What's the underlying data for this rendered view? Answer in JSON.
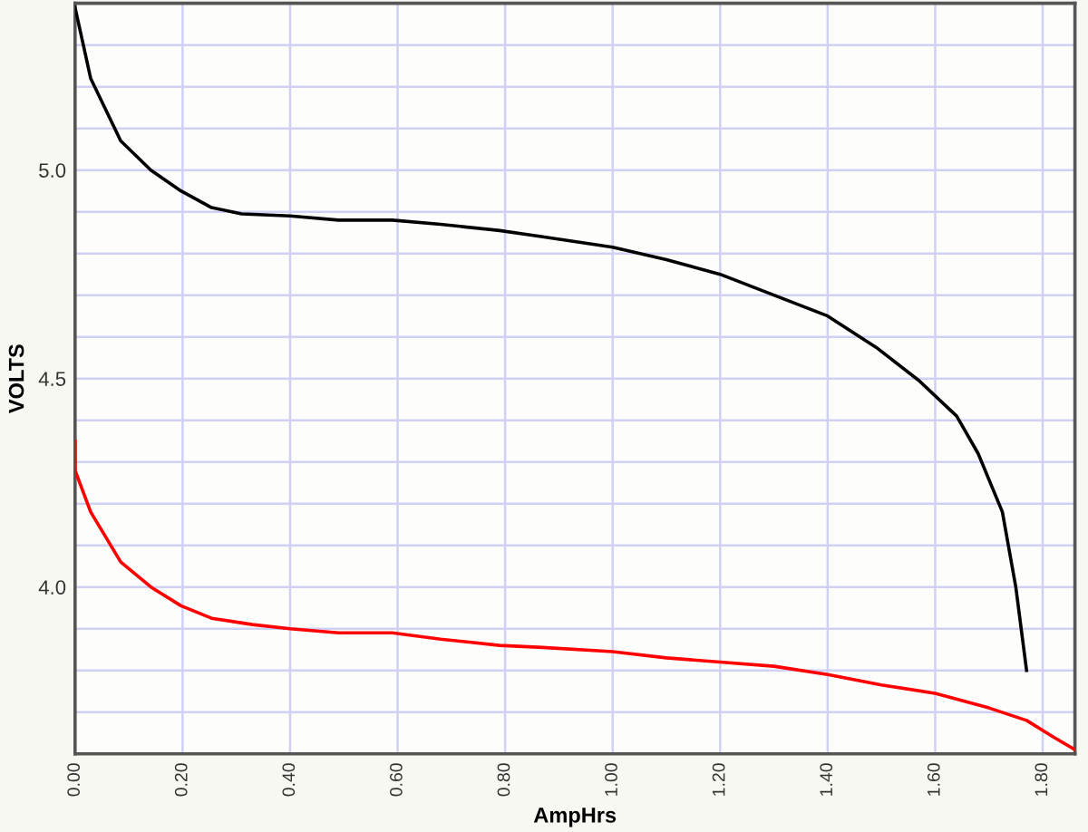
{
  "chart_data": {
    "type": "line",
    "xlabel": "AmpHrs",
    "ylabel": "VOLTS",
    "series": [
      {
        "color": "#000000",
        "x": [
          0,
          0.029,
          0.085,
          0.141,
          0.197,
          0.254,
          0.31,
          0.4,
          0.49,
          0.59,
          0.68,
          0.79,
          0.87,
          1.0,
          1.1,
          1.2,
          1.3,
          1.4,
          1.49,
          1.57,
          1.64,
          1.68,
          1.725,
          1.75,
          1.77
        ],
        "values": [
          5.39,
          5.22,
          5.07,
          5.0,
          4.95,
          4.91,
          4.895,
          4.89,
          4.88,
          4.88,
          4.87,
          4.855,
          4.84,
          4.815,
          4.785,
          4.75,
          4.7,
          4.65,
          4.575,
          4.495,
          4.41,
          4.32,
          4.18,
          4.0,
          3.8
        ]
      },
      {
        "color": "#ff0000",
        "x": [
          0,
          0,
          0.029,
          0.085,
          0.141,
          0.197,
          0.254,
          0.33,
          0.4,
          0.49,
          0.59,
          0.68,
          0.79,
          0.87,
          1.0,
          1.1,
          1.2,
          1.3,
          1.4,
          1.5,
          1.6,
          1.7,
          1.77,
          1.82,
          1.86
        ],
        "values": [
          4.35,
          4.28,
          4.18,
          4.06,
          4.0,
          3.955,
          3.925,
          3.91,
          3.9,
          3.89,
          3.89,
          3.875,
          3.86,
          3.855,
          3.845,
          3.83,
          3.82,
          3.81,
          3.79,
          3.765,
          3.745,
          3.71,
          3.68,
          3.64,
          3.61
        ]
      }
    ],
    "xlim": [
      0,
      1.86
    ],
    "ylim": [
      3.6,
      5.4
    ],
    "xticks": [
      {
        "value": 0,
        "label": "0.00"
      },
      {
        "value": 0.2,
        "label": "0.20"
      },
      {
        "value": 0.4,
        "label": "0.40"
      },
      {
        "value": 0.6,
        "label": "0.60"
      },
      {
        "value": 0.8,
        "label": "0.80"
      },
      {
        "value": 1.0,
        "label": "1.00"
      },
      {
        "value": 1.2,
        "label": "1.20"
      },
      {
        "value": 1.4,
        "label": "1.40"
      },
      {
        "value": 1.6,
        "label": "1.60"
      },
      {
        "value": 1.8,
        "label": "1.80"
      }
    ],
    "yticks": [
      {
        "value": 3.7,
        "label": null
      },
      {
        "value": 3.8,
        "label": null
      },
      {
        "value": 3.9,
        "label": null
      },
      {
        "value": 4.0,
        "label": "4.0"
      },
      {
        "value": 4.1,
        "label": null
      },
      {
        "value": 4.2,
        "label": null
      },
      {
        "value": 4.3,
        "label": null
      },
      {
        "value": 4.4,
        "label": null
      },
      {
        "value": 4.5,
        "label": "4.5"
      },
      {
        "value": 4.6,
        "label": null
      },
      {
        "value": 4.7,
        "label": null
      },
      {
        "value": 4.8,
        "label": null
      },
      {
        "value": 4.9,
        "label": null
      },
      {
        "value": 5.0,
        "label": "5.0"
      },
      {
        "value": 5.1,
        "label": null
      },
      {
        "value": 5.2,
        "label": null
      },
      {
        "value": 5.3,
        "label": null
      }
    ],
    "grid": true,
    "marker": "none",
    "line_style": "solid"
  }
}
